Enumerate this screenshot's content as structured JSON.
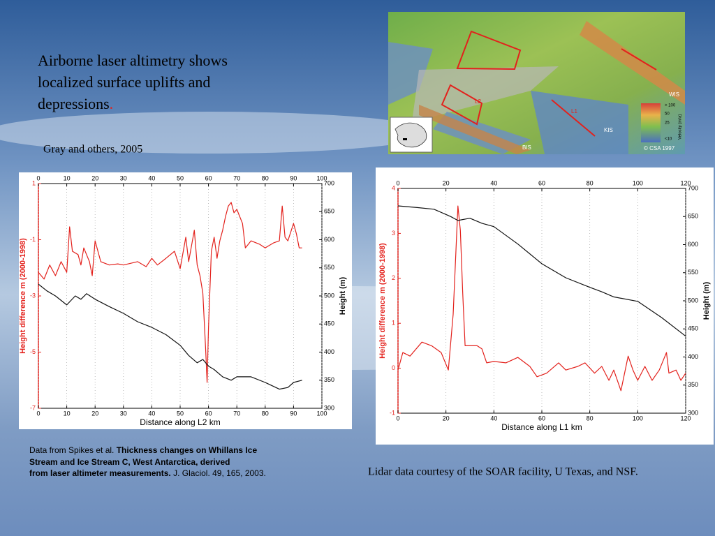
{
  "slide": {
    "title": "Airborne laser altimetry shows localized surface uplifts and depressions",
    "title_end": ".",
    "credit": "Gray and others, 2005",
    "citation_start": "Data from Spikes et al. ",
    "citation_bold": "Thickness changes on Whillans Ice Stream and Ice Stream C, West Antarctica, derived from laser altimeter measurements.",
    "citation_end": " J. Glaciol. 49, 165, 2003.",
    "lidar_credit": "Lidar data courtesy of the SOAR facility, U Texas, and NSF."
  },
  "map": {
    "labels": [
      "L2",
      "L1",
      "WIS",
      "KIS",
      "BIS",
      "> 100",
      "50",
      "25",
      "<10",
      "Velocity (m/a)",
      "© CSA 1997"
    ]
  },
  "chart_data": [
    {
      "type": "line",
      "xlabel": "Distance along L2 km",
      "ylabel": "Height difference m (2000-1998)",
      "y2label": "Height (m)",
      "xlim": [
        0,
        100
      ],
      "xticks": [
        0,
        10,
        20,
        30,
        40,
        50,
        60,
        70,
        80,
        90,
        100
      ],
      "ylim": [
        -7,
        1
      ],
      "yticks": [
        1,
        -1,
        -3,
        -5,
        -7
      ],
      "y2lim": [
        300,
        700
      ],
      "y2ticks": [
        300,
        350,
        400,
        450,
        500,
        550,
        600,
        650,
        700
      ],
      "grid": true,
      "series": [
        {
          "color": "#e3211c",
          "axis": "y",
          "x": [
            0,
            2,
            4,
            6,
            8,
            10,
            11,
            12,
            14,
            15,
            16,
            18,
            19,
            20,
            22,
            25,
            28,
            30,
            35,
            38,
            40,
            42,
            45,
            48,
            50,
            52,
            53,
            55,
            56,
            57,
            58,
            59,
            59.5,
            60,
            61,
            62,
            63,
            64,
            65,
            66,
            67,
            68,
            69,
            70,
            72,
            73,
            75,
            78,
            80,
            83,
            85,
            86,
            87,
            88,
            90,
            91,
            92,
            93
          ],
          "values": [
            -2.16,
            -2.4,
            -1.9,
            -2.28,
            -1.78,
            -2.16,
            -0.54,
            -1.41,
            -1.53,
            -1.9,
            -1.29,
            -1.78,
            -2.28,
            -1.04,
            -1.78,
            -1.9,
            -1.86,
            -1.9,
            -1.78,
            -1.96,
            -1.66,
            -1.9,
            -1.66,
            -1.41,
            -2.03,
            -0.91,
            -1.78,
            -0.66,
            -1.9,
            -2.28,
            -2.9,
            -4.89,
            -6.08,
            -4.14,
            -1.41,
            -0.91,
            -1.66,
            -1.04,
            -0.66,
            -0.17,
            0.2,
            0.33,
            -0.04,
            0.08,
            -0.42,
            -1.29,
            -1.04,
            -1.16,
            -1.29,
            -1.11,
            -1.04,
            0.2,
            -0.91,
            -1.04,
            -0.42,
            -0.79,
            -1.29,
            -1.29
          ]
        },
        {
          "color": "#111111",
          "axis": "y2",
          "x": [
            0,
            3,
            6,
            10,
            13,
            15,
            17,
            20,
            25,
            30,
            35,
            40,
            45,
            50,
            53,
            56,
            58,
            60,
            62,
            65,
            68,
            70,
            75,
            80,
            85,
            88,
            90,
            93
          ],
          "values": [
            521,
            509,
            500,
            484,
            500,
            494,
            504,
            494,
            481,
            469,
            454,
            444,
            431,
            412,
            394,
            381,
            387,
            375,
            369,
            356,
            350,
            356,
            356,
            346,
            334,
            337,
            346,
            350
          ]
        }
      ]
    },
    {
      "type": "line",
      "xlabel": "Distance along L1 km",
      "ylabel": "Height difference m (2000-1998)",
      "y2label": "Height (m)",
      "xlim": [
        0,
        120
      ],
      "xticks": [
        0,
        20,
        40,
        60,
        80,
        100,
        120
      ],
      "ylim": [
        -1,
        4
      ],
      "yticks": [
        -1,
        0,
        1,
        2,
        3,
        4
      ],
      "y2lim": [
        300,
        700
      ],
      "y2ticks": [
        300,
        350,
        400,
        450,
        500,
        550,
        600,
        650,
        700
      ],
      "grid": true,
      "series": [
        {
          "color": "#e3211c",
          "axis": "y",
          "x": [
            0,
            2,
            5,
            10,
            14,
            18,
            21,
            23,
            25,
            26,
            27,
            28,
            30,
            33,
            35,
            37,
            40,
            45,
            50,
            55,
            58,
            62,
            67,
            70,
            75,
            78,
            82,
            85,
            88,
            90,
            93,
            96,
            98,
            100,
            103,
            106,
            109,
            112,
            113,
            116,
            118,
            120
          ],
          "values": [
            -0.04,
            0.35,
            0.27,
            0.58,
            0.5,
            0.35,
            -0.04,
            1.2,
            3.61,
            3.07,
            1.67,
            0.5,
            0.5,
            0.5,
            0.43,
            0.12,
            0.15,
            0.12,
            0.24,
            0.04,
            -0.19,
            -0.11,
            0.12,
            -0.04,
            0.04,
            0.12,
            -0.11,
            0.04,
            -0.27,
            -0.04,
            -0.5,
            0.27,
            -0.04,
            -0.27,
            0.04,
            -0.27,
            -0.04,
            0.35,
            -0.11,
            -0.04,
            -0.27,
            -0.11
          ]
        },
        {
          "color": "#111111",
          "axis": "y2",
          "x": [
            0,
            8,
            15,
            22,
            25,
            30,
            35,
            40,
            50,
            60,
            70,
            80,
            85,
            90,
            100,
            110,
            120
          ],
          "values": [
            669,
            666,
            663,
            650,
            643,
            647,
            638,
            632,
            601,
            566,
            541,
            524,
            516,
            507,
            499,
            470,
            437
          ]
        }
      ]
    }
  ]
}
